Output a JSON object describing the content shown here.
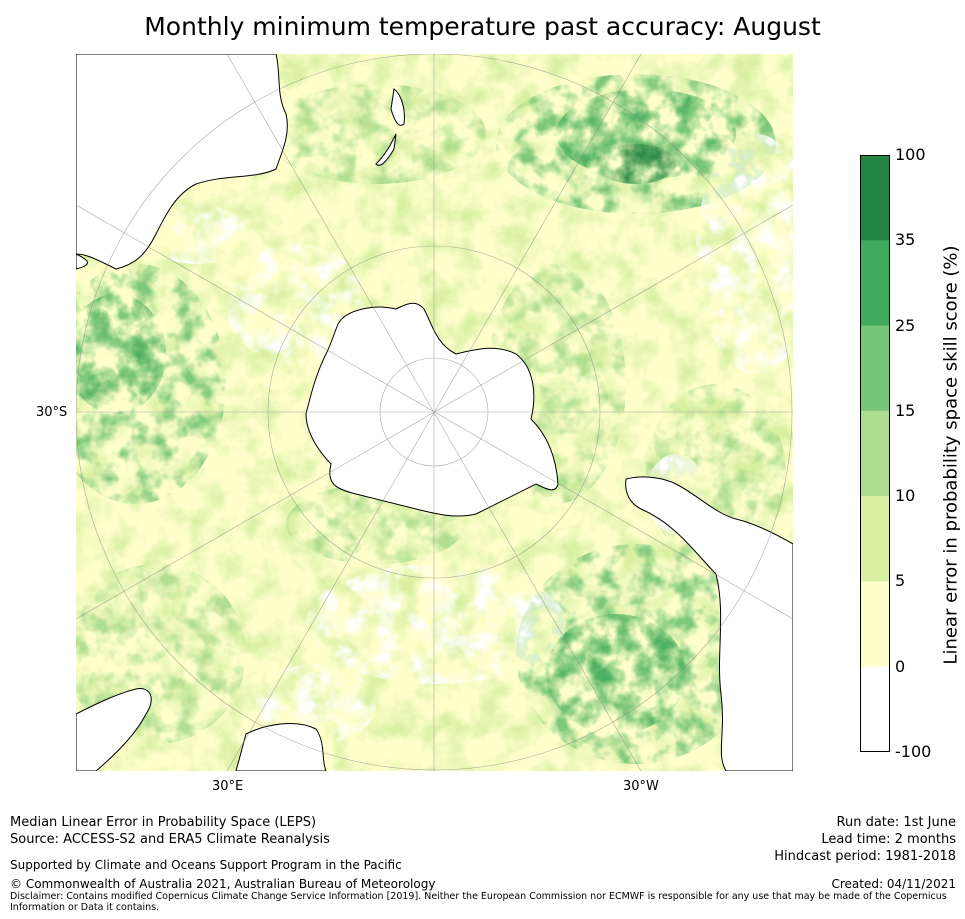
{
  "title": "Monthly minimum temperature past accuracy: August",
  "map": {
    "projection": "south-polar-stereographic",
    "labels": {
      "lat_30s": "30°S",
      "lon_30e": "30°E",
      "lon_30w": "30°W"
    },
    "land_color": "#ffffff",
    "coast_color": "#000000"
  },
  "colorbar": {
    "title": "Linear error in probability space skill score (%)",
    "ticks": [
      "100",
      "35",
      "25",
      "15",
      "10",
      "5",
      "0",
      "-100"
    ],
    "bins": [
      {
        "from": -100,
        "to": 0,
        "color": "#ffffff"
      },
      {
        "from": 0,
        "to": 5,
        "color": "#ffffcc"
      },
      {
        "from": 5,
        "to": 10,
        "color": "#d9f0a3"
      },
      {
        "from": 10,
        "to": 15,
        "color": "#addd8e"
      },
      {
        "from": 15,
        "to": 25,
        "color": "#78c679"
      },
      {
        "from": 25,
        "to": 35,
        "color": "#41ab5d"
      },
      {
        "from": 35,
        "to": 100,
        "color": "#238443"
      }
    ]
  },
  "footer": {
    "left1": "Median Linear Error in Probability Space (LEPS)",
    "left2": "Source: ACCESS-S2 and ERA5 Climate Reanalysis",
    "support": "Supported by Climate and Oceans Support Program in the Pacific",
    "copyright": "© Commonwealth of Australia 2021, Australian Bureau of Meteorology",
    "run_date": "Run date: 1st June",
    "lead_time": "Lead time: 2 months",
    "hindcast": "Hindcast period: 1981-2018",
    "created": "Created: 04/11/2021",
    "disclaimer": "Disclaimer: Contains modified Copernicus Climate Change Service Information [2019]. Neither the European Commission nor ECMWF is responsible for any use that may be made of the Copernicus Information or Data it contains."
  }
}
